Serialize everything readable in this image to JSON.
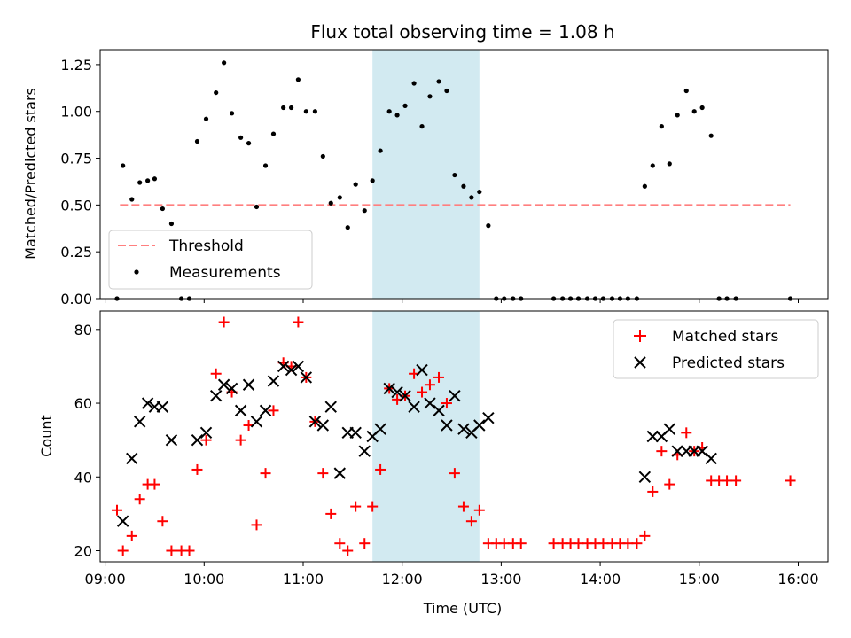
{
  "chart_data": {
    "type": "scatter",
    "title": "Flux total observing time = 1.08 h",
    "xlabel": "Time (UTC)",
    "x_ticks": [
      "09:00",
      "10:00",
      "11:00",
      "12:00",
      "13:00",
      "14:00",
      "15:00",
      "16:00"
    ],
    "x_range_hours": [
      8.95,
      16.3
    ],
    "highlight_span_hours": [
      11.7,
      12.78
    ],
    "highlight_color": "#add8e6",
    "top": {
      "ylabel": "Matched/Predicted stars",
      "ylim": [
        0,
        1.33
      ],
      "y_ticks": [
        "0.00",
        "0.25",
        "0.50",
        "0.75",
        "1.00",
        "1.25"
      ],
      "threshold": {
        "name": "Threshold",
        "value": 0.5,
        "x_start": 9.15,
        "x_end": 15.92,
        "color": "#ff7f7f"
      },
      "measurements": {
        "name": "Measurements",
        "color": "#000000",
        "points": [
          [
            9.12,
            0.0
          ],
          [
            9.18,
            0.71
          ],
          [
            9.27,
            0.53
          ],
          [
            9.35,
            0.62
          ],
          [
            9.43,
            0.63
          ],
          [
            9.5,
            0.64
          ],
          [
            9.58,
            0.48
          ],
          [
            9.67,
            0.4
          ],
          [
            9.77,
            0.0
          ],
          [
            9.85,
            0.0
          ],
          [
            9.93,
            0.84
          ],
          [
            10.02,
            0.96
          ],
          [
            10.12,
            1.1
          ],
          [
            10.2,
            1.26
          ],
          [
            10.28,
            0.99
          ],
          [
            10.37,
            0.86
          ],
          [
            10.45,
            0.83
          ],
          [
            10.53,
            0.49
          ],
          [
            10.62,
            0.71
          ],
          [
            10.7,
            0.88
          ],
          [
            10.8,
            1.02
          ],
          [
            10.88,
            1.02
          ],
          [
            10.95,
            1.17
          ],
          [
            11.03,
            1.0
          ],
          [
            11.12,
            1.0
          ],
          [
            11.2,
            0.76
          ],
          [
            11.28,
            0.51
          ],
          [
            11.37,
            0.54
          ],
          [
            11.45,
            0.38
          ],
          [
            11.53,
            0.61
          ],
          [
            11.62,
            0.47
          ],
          [
            11.7,
            0.63
          ],
          [
            11.78,
            0.79
          ],
          [
            11.87,
            1.0
          ],
          [
            11.95,
            0.98
          ],
          [
            12.03,
            1.03
          ],
          [
            12.12,
            1.15
          ],
          [
            12.2,
            0.92
          ],
          [
            12.28,
            1.08
          ],
          [
            12.37,
            1.16
          ],
          [
            12.45,
            1.11
          ],
          [
            12.53,
            0.66
          ],
          [
            12.62,
            0.6
          ],
          [
            12.7,
            0.54
          ],
          [
            12.78,
            0.57
          ],
          [
            12.87,
            0.39
          ],
          [
            12.95,
            0.0
          ],
          [
            13.03,
            0.0
          ],
          [
            13.12,
            0.0
          ],
          [
            13.2,
            0.0
          ],
          [
            13.53,
            0.0
          ],
          [
            13.62,
            0.0
          ],
          [
            13.7,
            0.0
          ],
          [
            13.78,
            0.0
          ],
          [
            13.87,
            0.0
          ],
          [
            13.95,
            0.0
          ],
          [
            14.03,
            0.0
          ],
          [
            14.12,
            0.0
          ],
          [
            14.2,
            0.0
          ],
          [
            14.28,
            0.0
          ],
          [
            14.37,
            0.0
          ],
          [
            14.45,
            0.6
          ],
          [
            14.53,
            0.71
          ],
          [
            14.62,
            0.92
          ],
          [
            14.7,
            0.72
          ],
          [
            14.78,
            0.98
          ],
          [
            14.87,
            1.11
          ],
          [
            14.95,
            1.0
          ],
          [
            15.03,
            1.02
          ],
          [
            15.12,
            0.87
          ],
          [
            15.2,
            0.0
          ],
          [
            15.28,
            0.0
          ],
          [
            15.37,
            0.0
          ],
          [
            15.92,
            0.0
          ]
        ]
      },
      "legend_position": "lower-left"
    },
    "bottom": {
      "ylabel": "Count",
      "ylim": [
        17,
        85
      ],
      "y_ticks": [
        20,
        40,
        60,
        80
      ],
      "legend_position": "upper-right",
      "series": [
        {
          "name": "Matched stars",
          "marker": "plus",
          "color": "#ff0000",
          "points": [
            [
              9.12,
              31
            ],
            [
              9.18,
              20
            ],
            [
              9.27,
              24
            ],
            [
              9.35,
              34
            ],
            [
              9.43,
              38
            ],
            [
              9.5,
              38
            ],
            [
              9.58,
              28
            ],
            [
              9.67,
              20
            ],
            [
              9.77,
              20
            ],
            [
              9.85,
              20
            ],
            [
              9.93,
              42
            ],
            [
              10.02,
              50
            ],
            [
              10.12,
              68
            ],
            [
              10.2,
              82
            ],
            [
              10.28,
              63
            ],
            [
              10.37,
              50
            ],
            [
              10.45,
              54
            ],
            [
              10.53,
              27
            ],
            [
              10.62,
              41
            ],
            [
              10.7,
              58
            ],
            [
              10.8,
              71
            ],
            [
              10.88,
              70
            ],
            [
              10.95,
              82
            ],
            [
              11.03,
              67
            ],
            [
              11.12,
              55
            ],
            [
              11.2,
              41
            ],
            [
              11.28,
              30
            ],
            [
              11.37,
              22
            ],
            [
              11.45,
              20
            ],
            [
              11.53,
              32
            ],
            [
              11.62,
              22
            ],
            [
              11.7,
              32
            ],
            [
              11.78,
              42
            ],
            [
              11.87,
              64
            ],
            [
              11.95,
              61
            ],
            [
              12.03,
              62
            ],
            [
              12.12,
              68
            ],
            [
              12.2,
              63
            ],
            [
              12.28,
              65
            ],
            [
              12.37,
              67
            ],
            [
              12.45,
              60
            ],
            [
              12.53,
              41
            ],
            [
              12.62,
              32
            ],
            [
              12.7,
              28
            ],
            [
              12.78,
              31
            ],
            [
              12.87,
              22
            ],
            [
              12.95,
              22
            ],
            [
              13.03,
              22
            ],
            [
              13.12,
              22
            ],
            [
              13.2,
              22
            ],
            [
              13.53,
              22
            ],
            [
              13.62,
              22
            ],
            [
              13.7,
              22
            ],
            [
              13.78,
              22
            ],
            [
              13.87,
              22
            ],
            [
              13.95,
              22
            ],
            [
              14.03,
              22
            ],
            [
              14.12,
              22
            ],
            [
              14.2,
              22
            ],
            [
              14.28,
              22
            ],
            [
              14.37,
              22
            ],
            [
              14.45,
              24
            ],
            [
              14.53,
              36
            ],
            [
              14.62,
              47
            ],
            [
              14.7,
              38
            ],
            [
              14.78,
              46
            ],
            [
              14.87,
              52
            ],
            [
              14.95,
              47
            ],
            [
              15.03,
              48
            ],
            [
              15.12,
              39
            ],
            [
              15.2,
              39
            ],
            [
              15.28,
              39
            ],
            [
              15.37,
              39
            ],
            [
              15.92,
              39
            ]
          ]
        },
        {
          "name": "Predicted stars",
          "marker": "x",
          "color": "#000000",
          "points": [
            [
              9.18,
              28
            ],
            [
              9.27,
              45
            ],
            [
              9.35,
              55
            ],
            [
              9.43,
              60
            ],
            [
              9.5,
              59
            ],
            [
              9.58,
              59
            ],
            [
              9.67,
              50
            ],
            [
              9.93,
              50
            ],
            [
              10.02,
              52
            ],
            [
              10.12,
              62
            ],
            [
              10.2,
              65
            ],
            [
              10.28,
              64
            ],
            [
              10.37,
              58
            ],
            [
              10.45,
              65
            ],
            [
              10.53,
              55
            ],
            [
              10.62,
              58
            ],
            [
              10.7,
              66
            ],
            [
              10.8,
              70
            ],
            [
              10.88,
              69
            ],
            [
              10.95,
              70
            ],
            [
              11.03,
              67
            ],
            [
              11.12,
              55
            ],
            [
              11.2,
              54
            ],
            [
              11.28,
              59
            ],
            [
              11.37,
              41
            ],
            [
              11.45,
              52
            ],
            [
              11.53,
              52
            ],
            [
              11.62,
              47
            ],
            [
              11.7,
              51
            ],
            [
              11.78,
              53
            ],
            [
              11.87,
              64
            ],
            [
              11.95,
              63
            ],
            [
              12.03,
              62
            ],
            [
              12.12,
              59
            ],
            [
              12.2,
              69
            ],
            [
              12.28,
              60
            ],
            [
              12.37,
              58
            ],
            [
              12.45,
              54
            ],
            [
              12.53,
              62
            ],
            [
              12.62,
              53
            ],
            [
              12.7,
              52
            ],
            [
              12.78,
              54
            ],
            [
              12.87,
              56
            ],
            [
              14.45,
              40
            ],
            [
              14.53,
              51
            ],
            [
              14.62,
              51
            ],
            [
              14.7,
              53
            ],
            [
              14.78,
              47
            ],
            [
              14.87,
              47
            ],
            [
              14.95,
              47
            ],
            [
              15.03,
              47
            ],
            [
              15.12,
              45
            ]
          ]
        }
      ]
    }
  }
}
